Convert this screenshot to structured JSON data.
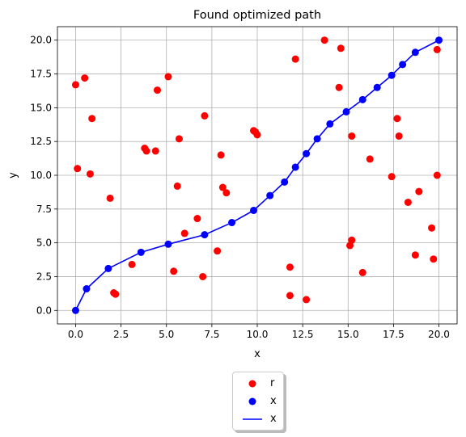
{
  "chart_data": {
    "type": "scatter",
    "title": "Found optimized path",
    "xlabel": "x",
    "ylabel": "y",
    "xlim": [
      -1,
      21
    ],
    "ylim": [
      -1,
      21
    ],
    "xticks": [
      "0.0",
      "2.5",
      "5.0",
      "7.5",
      "10.0",
      "12.5",
      "15.0",
      "17.5",
      "20.0"
    ],
    "yticks": [
      "0.0",
      "2.5",
      "5.0",
      "7.5",
      "10.0",
      "12.5",
      "15.0",
      "17.5",
      "20.0"
    ],
    "grid": true,
    "legend_placement": "below center",
    "series": [
      {
        "name": "r",
        "kind": "scatter",
        "color": "#ff0000",
        "points": [
          [
            0.0,
            16.7
          ],
          [
            0.5,
            17.2
          ],
          [
            0.1,
            10.5
          ],
          [
            0.9,
            14.2
          ],
          [
            0.8,
            10.1
          ],
          [
            1.9,
            8.3
          ],
          [
            2.1,
            1.3
          ],
          [
            2.2,
            1.2
          ],
          [
            3.1,
            3.4
          ],
          [
            3.8,
            12.0
          ],
          [
            3.9,
            11.8
          ],
          [
            4.4,
            11.8
          ],
          [
            4.5,
            16.3
          ],
          [
            5.1,
            17.3
          ],
          [
            5.4,
            2.9
          ],
          [
            5.6,
            9.2
          ],
          [
            5.7,
            12.7
          ],
          [
            6.0,
            5.7
          ],
          [
            6.7,
            6.8
          ],
          [
            7.0,
            2.5
          ],
          [
            7.1,
            14.4
          ],
          [
            7.8,
            4.4
          ],
          [
            8.0,
            11.5
          ],
          [
            8.1,
            9.1
          ],
          [
            8.3,
            8.7
          ],
          [
            9.8,
            13.3
          ],
          [
            9.9,
            13.2
          ],
          [
            10.0,
            13.0
          ],
          [
            11.8,
            3.2
          ],
          [
            11.8,
            1.1
          ],
          [
            12.1,
            18.6
          ],
          [
            12.7,
            0.8
          ],
          [
            13.7,
            20.0
          ],
          [
            14.5,
            16.5
          ],
          [
            14.6,
            19.4
          ],
          [
            15.1,
            4.8
          ],
          [
            15.2,
            5.2
          ],
          [
            15.2,
            12.9
          ],
          [
            15.8,
            2.8
          ],
          [
            16.2,
            11.2
          ],
          [
            17.4,
            9.9
          ],
          [
            17.7,
            14.2
          ],
          [
            17.8,
            12.9
          ],
          [
            18.3,
            8.0
          ],
          [
            18.7,
            4.1
          ],
          [
            18.9,
            8.8
          ],
          [
            19.6,
            6.1
          ],
          [
            19.7,
            3.8
          ],
          [
            19.9,
            19.3
          ],
          [
            19.9,
            10.0
          ]
        ]
      },
      {
        "name": "x",
        "kind": "scatter",
        "color": "#0000ff",
        "points": [
          [
            0.0,
            0.0
          ],
          [
            0.6,
            1.6
          ],
          [
            1.8,
            3.1
          ],
          [
            3.6,
            4.3
          ],
          [
            5.1,
            4.9
          ],
          [
            7.1,
            5.6
          ],
          [
            8.6,
            6.5
          ],
          [
            9.8,
            7.4
          ],
          [
            10.7,
            8.5
          ],
          [
            11.5,
            9.5
          ],
          [
            12.1,
            10.6
          ],
          [
            12.7,
            11.6
          ],
          [
            13.3,
            12.7
          ],
          [
            14.0,
            13.8
          ],
          [
            14.9,
            14.7
          ],
          [
            15.8,
            15.6
          ],
          [
            16.6,
            16.5
          ],
          [
            17.4,
            17.4
          ],
          [
            18.0,
            18.2
          ],
          [
            18.7,
            19.1
          ],
          [
            20.0,
            20.0
          ]
        ]
      },
      {
        "name": "x",
        "kind": "line",
        "color": "#0000ff",
        "points_from_series": 1
      }
    ]
  }
}
